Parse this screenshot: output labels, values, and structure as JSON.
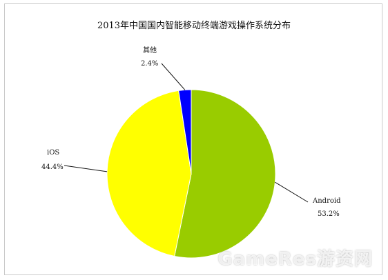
{
  "chart_data": {
    "type": "pie",
    "title": "2013年中国国内智能移动终端游戏操作系统分布",
    "slices": [
      {
        "name": "Android",
        "value": 53.2,
        "label": "53.2%",
        "color": "#99cc00"
      },
      {
        "name": "iOS",
        "value": 44.4,
        "label": "44.4%",
        "color": "#ffff00"
      },
      {
        "name": "其他",
        "value": 2.4,
        "label": "2.4%",
        "color": "#0000ff"
      }
    ],
    "legend": "none",
    "start_angle_deg": 0,
    "direction": "clockwise"
  },
  "watermark": {
    "text": "GameRes游资网"
  }
}
